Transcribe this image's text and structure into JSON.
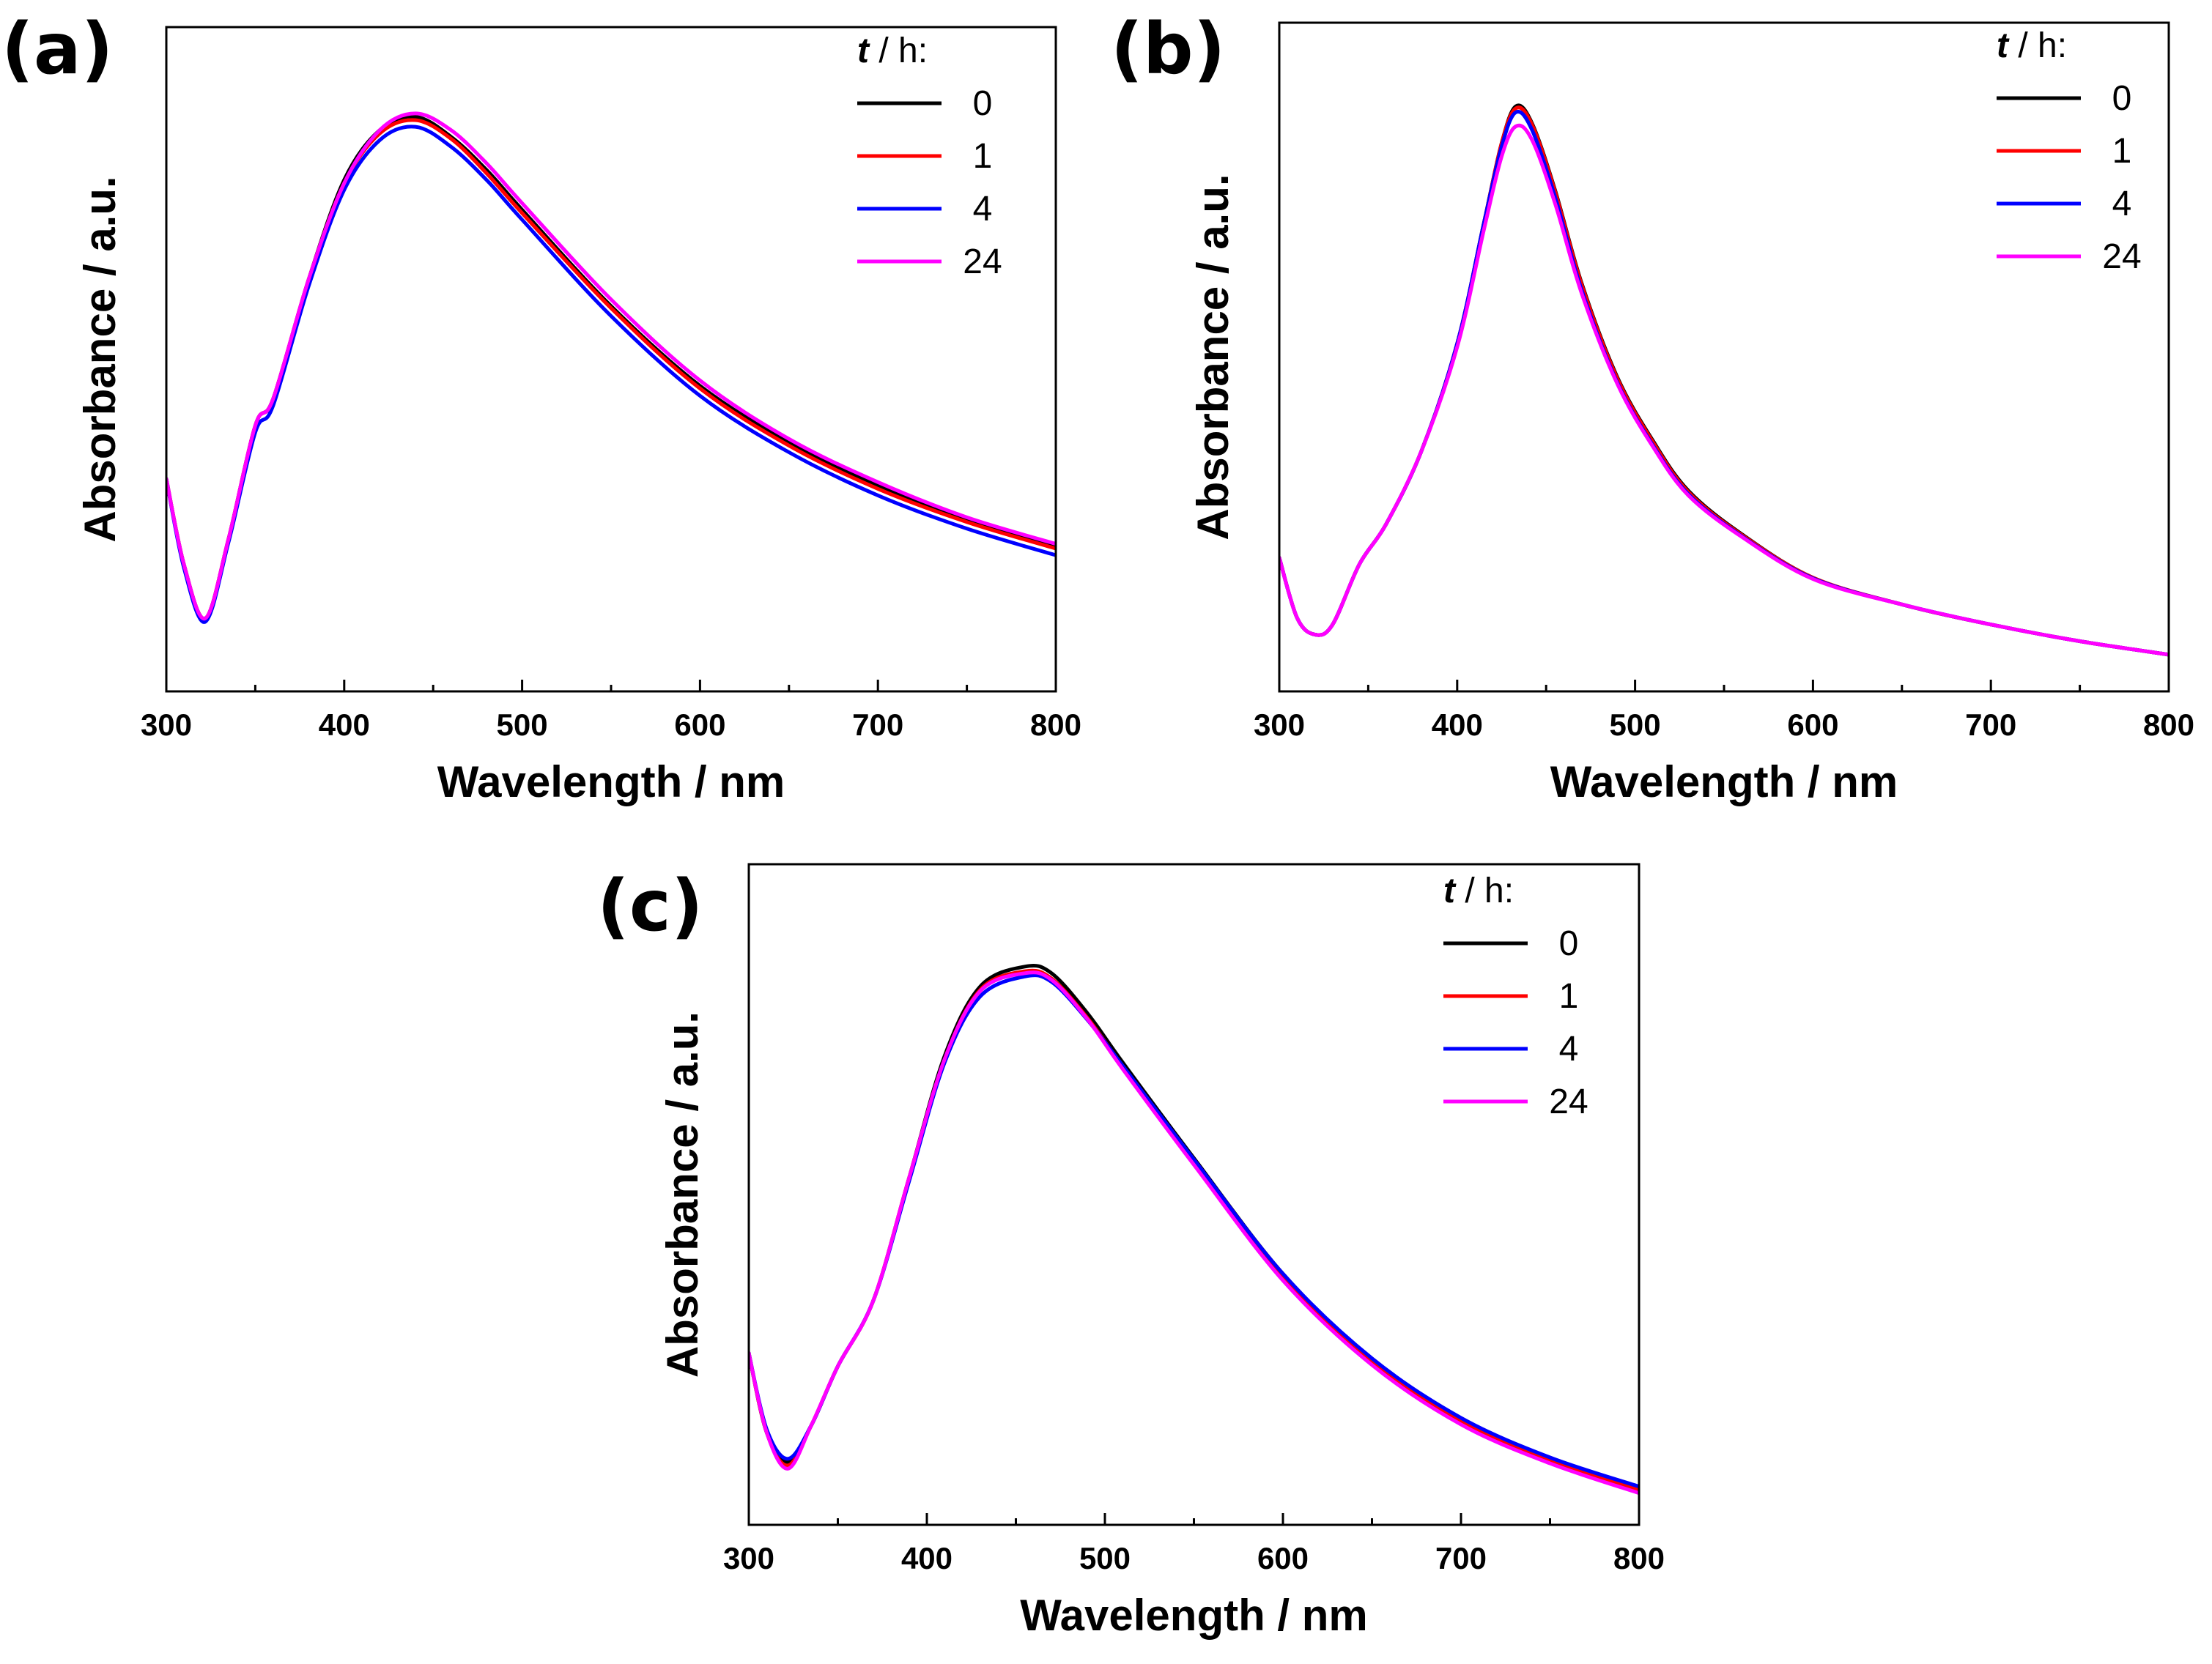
{
  "chart_data": [
    {
      "type": "line",
      "panel_label": "(a)",
      "xlabel": "Wavelength / nm",
      "ylabel": "Absorbance / a.u.",
      "xlim": [
        300,
        800
      ],
      "ylim": [
        0,
        1
      ],
      "x_ticks": [
        300,
        400,
        500,
        600,
        700,
        800
      ],
      "x_tick_labels": [
        "300",
        "400",
        "500",
        "600",
        "700",
        "800"
      ],
      "y_ticks_shown": false,
      "legend": {
        "title_symbol": "t",
        "title_rest": " / h:",
        "position": "top-right"
      },
      "series": [
        {
          "name": "0",
          "color": "#000000",
          "x": [
            300,
            310,
            322,
            335,
            350,
            360,
            380,
            400,
            420,
            440,
            460,
            480,
            500,
            550,
            600,
            650,
            700,
            750,
            800
          ],
          "y": [
            0.32,
            0.19,
            0.11,
            0.23,
            0.4,
            0.44,
            0.62,
            0.77,
            0.845,
            0.865,
            0.835,
            0.785,
            0.725,
            0.58,
            0.46,
            0.375,
            0.31,
            0.26,
            0.22
          ]
        },
        {
          "name": "1",
          "color": "#ff0000",
          "x": [
            300,
            310,
            322,
            335,
            350,
            360,
            380,
            400,
            420,
            440,
            460,
            480,
            500,
            550,
            600,
            650,
            700,
            750,
            800
          ],
          "y": [
            0.32,
            0.19,
            0.11,
            0.23,
            0.4,
            0.44,
            0.62,
            0.765,
            0.84,
            0.86,
            0.832,
            0.78,
            0.72,
            0.577,
            0.456,
            0.37,
            0.305,
            0.255,
            0.215
          ]
        },
        {
          "name": "4",
          "color": "#0000ff",
          "x": [
            300,
            310,
            322,
            335,
            350,
            360,
            380,
            400,
            420,
            440,
            460,
            480,
            500,
            550,
            600,
            650,
            700,
            750,
            800
          ],
          "y": [
            0.32,
            0.185,
            0.105,
            0.225,
            0.39,
            0.43,
            0.61,
            0.755,
            0.83,
            0.85,
            0.82,
            0.77,
            0.71,
            0.565,
            0.445,
            0.36,
            0.295,
            0.245,
            0.205
          ]
        },
        {
          "name": "24",
          "color": "#ff00ff",
          "x": [
            300,
            310,
            322,
            335,
            350,
            360,
            380,
            400,
            420,
            440,
            460,
            480,
            500,
            550,
            600,
            650,
            700,
            750,
            800
          ],
          "y": [
            0.32,
            0.19,
            0.11,
            0.23,
            0.4,
            0.44,
            0.62,
            0.765,
            0.845,
            0.87,
            0.845,
            0.795,
            0.735,
            0.59,
            0.468,
            0.38,
            0.315,
            0.262,
            0.222
          ]
        }
      ]
    },
    {
      "type": "line",
      "panel_label": "(b)",
      "xlabel": "Wavelength / nm",
      "ylabel": "Absorbance / a.u.",
      "xlim": [
        300,
        800
      ],
      "ylim": [
        0,
        1
      ],
      "x_ticks": [
        300,
        400,
        500,
        600,
        700,
        800
      ],
      "x_tick_labels": [
        "300",
        "400",
        "500",
        "600",
        "700",
        "800"
      ],
      "y_ticks_shown": false,
      "legend": {
        "title_symbol": "t",
        "title_rest": " / h:",
        "position": "top-right"
      },
      "series": [
        {
          "name": "0",
          "color": "#000000",
          "x": [
            300,
            310,
            320,
            330,
            345,
            360,
            380,
            400,
            415,
            425,
            433,
            442,
            455,
            470,
            490,
            510,
            530,
            560,
            600,
            650,
            700,
            750,
            800
          ],
          "y": [
            0.2,
            0.11,
            0.085,
            0.1,
            0.19,
            0.25,
            0.36,
            0.52,
            0.7,
            0.82,
            0.875,
            0.85,
            0.75,
            0.61,
            0.47,
            0.375,
            0.3,
            0.235,
            0.17,
            0.13,
            0.1,
            0.075,
            0.055
          ]
        },
        {
          "name": "1",
          "color": "#ff0000",
          "x": [
            300,
            310,
            320,
            330,
            345,
            360,
            380,
            400,
            415,
            425,
            433,
            442,
            455,
            470,
            490,
            510,
            530,
            560,
            600,
            650,
            700,
            750,
            800
          ],
          "y": [
            0.2,
            0.11,
            0.085,
            0.1,
            0.19,
            0.25,
            0.36,
            0.52,
            0.7,
            0.82,
            0.872,
            0.848,
            0.748,
            0.608,
            0.468,
            0.373,
            0.298,
            0.234,
            0.17,
            0.13,
            0.1,
            0.075,
            0.055
          ]
        },
        {
          "name": "4",
          "color": "#0000ff",
          "x": [
            300,
            310,
            320,
            330,
            345,
            360,
            380,
            400,
            415,
            425,
            433,
            442,
            455,
            470,
            490,
            510,
            530,
            560,
            600,
            650,
            700,
            750,
            800
          ],
          "y": [
            0.2,
            0.11,
            0.085,
            0.1,
            0.19,
            0.25,
            0.36,
            0.52,
            0.7,
            0.815,
            0.866,
            0.84,
            0.74,
            0.6,
            0.462,
            0.368,
            0.295,
            0.232,
            0.169,
            0.13,
            0.1,
            0.075,
            0.055
          ]
        },
        {
          "name": "24",
          "color": "#ff00ff",
          "x": [
            300,
            310,
            320,
            330,
            345,
            360,
            380,
            400,
            415,
            425,
            433,
            442,
            455,
            470,
            490,
            510,
            530,
            560,
            600,
            650,
            700,
            750,
            800
          ],
          "y": [
            0.2,
            0.11,
            0.085,
            0.1,
            0.19,
            0.25,
            0.36,
            0.515,
            0.69,
            0.8,
            0.845,
            0.825,
            0.73,
            0.595,
            0.46,
            0.366,
            0.293,
            0.231,
            0.168,
            0.13,
            0.1,
            0.075,
            0.055
          ]
        }
      ]
    },
    {
      "type": "line",
      "panel_label": "(c)",
      "xlabel": "Wavelength / nm",
      "ylabel": "Absorbance / a.u.",
      "xlim": [
        300,
        800
      ],
      "ylim": [
        0,
        1
      ],
      "x_ticks": [
        300,
        400,
        500,
        600,
        700,
        800
      ],
      "x_tick_labels": [
        "300",
        "400",
        "500",
        "600",
        "700",
        "800"
      ],
      "y_ticks_shown": false,
      "legend": {
        "title_symbol": "t",
        "title_rest": " / h:",
        "position": "top-right"
      },
      "series": [
        {
          "name": "0",
          "color": "#000000",
          "x": [
            300,
            310,
            322,
            335,
            350,
            370,
            390,
            410,
            430,
            455,
            470,
            490,
            510,
            550,
            600,
            650,
            700,
            750,
            800
          ],
          "y": [
            0.26,
            0.14,
            0.095,
            0.15,
            0.24,
            0.34,
            0.525,
            0.71,
            0.815,
            0.845,
            0.835,
            0.775,
            0.7,
            0.555,
            0.38,
            0.25,
            0.16,
            0.1,
            0.055
          ]
        },
        {
          "name": "1",
          "color": "#ff0000",
          "x": [
            300,
            310,
            322,
            335,
            350,
            370,
            390,
            410,
            430,
            455,
            470,
            490,
            510,
            550,
            600,
            650,
            700,
            750,
            800
          ],
          "y": [
            0.26,
            0.14,
            0.09,
            0.15,
            0.24,
            0.34,
            0.525,
            0.705,
            0.81,
            0.838,
            0.827,
            0.768,
            0.694,
            0.55,
            0.376,
            0.247,
            0.157,
            0.098,
            0.053
          ]
        },
        {
          "name": "4",
          "color": "#0000ff",
          "x": [
            300,
            310,
            322,
            335,
            350,
            370,
            390,
            410,
            430,
            455,
            470,
            490,
            510,
            550,
            600,
            650,
            700,
            750,
            800
          ],
          "y": [
            0.26,
            0.145,
            0.1,
            0.15,
            0.24,
            0.34,
            0.52,
            0.7,
            0.8,
            0.83,
            0.822,
            0.765,
            0.695,
            0.553,
            0.38,
            0.252,
            0.162,
            0.102,
            0.058
          ]
        },
        {
          "name": "24",
          "color": "#ff00ff",
          "x": [
            300,
            310,
            322,
            335,
            350,
            370,
            390,
            410,
            430,
            455,
            470,
            490,
            510,
            550,
            600,
            650,
            700,
            750,
            800
          ],
          "y": [
            0.26,
            0.14,
            0.085,
            0.15,
            0.24,
            0.34,
            0.525,
            0.705,
            0.808,
            0.835,
            0.825,
            0.766,
            0.69,
            0.545,
            0.37,
            0.242,
            0.152,
            0.093,
            0.048
          ]
        }
      ]
    }
  ]
}
